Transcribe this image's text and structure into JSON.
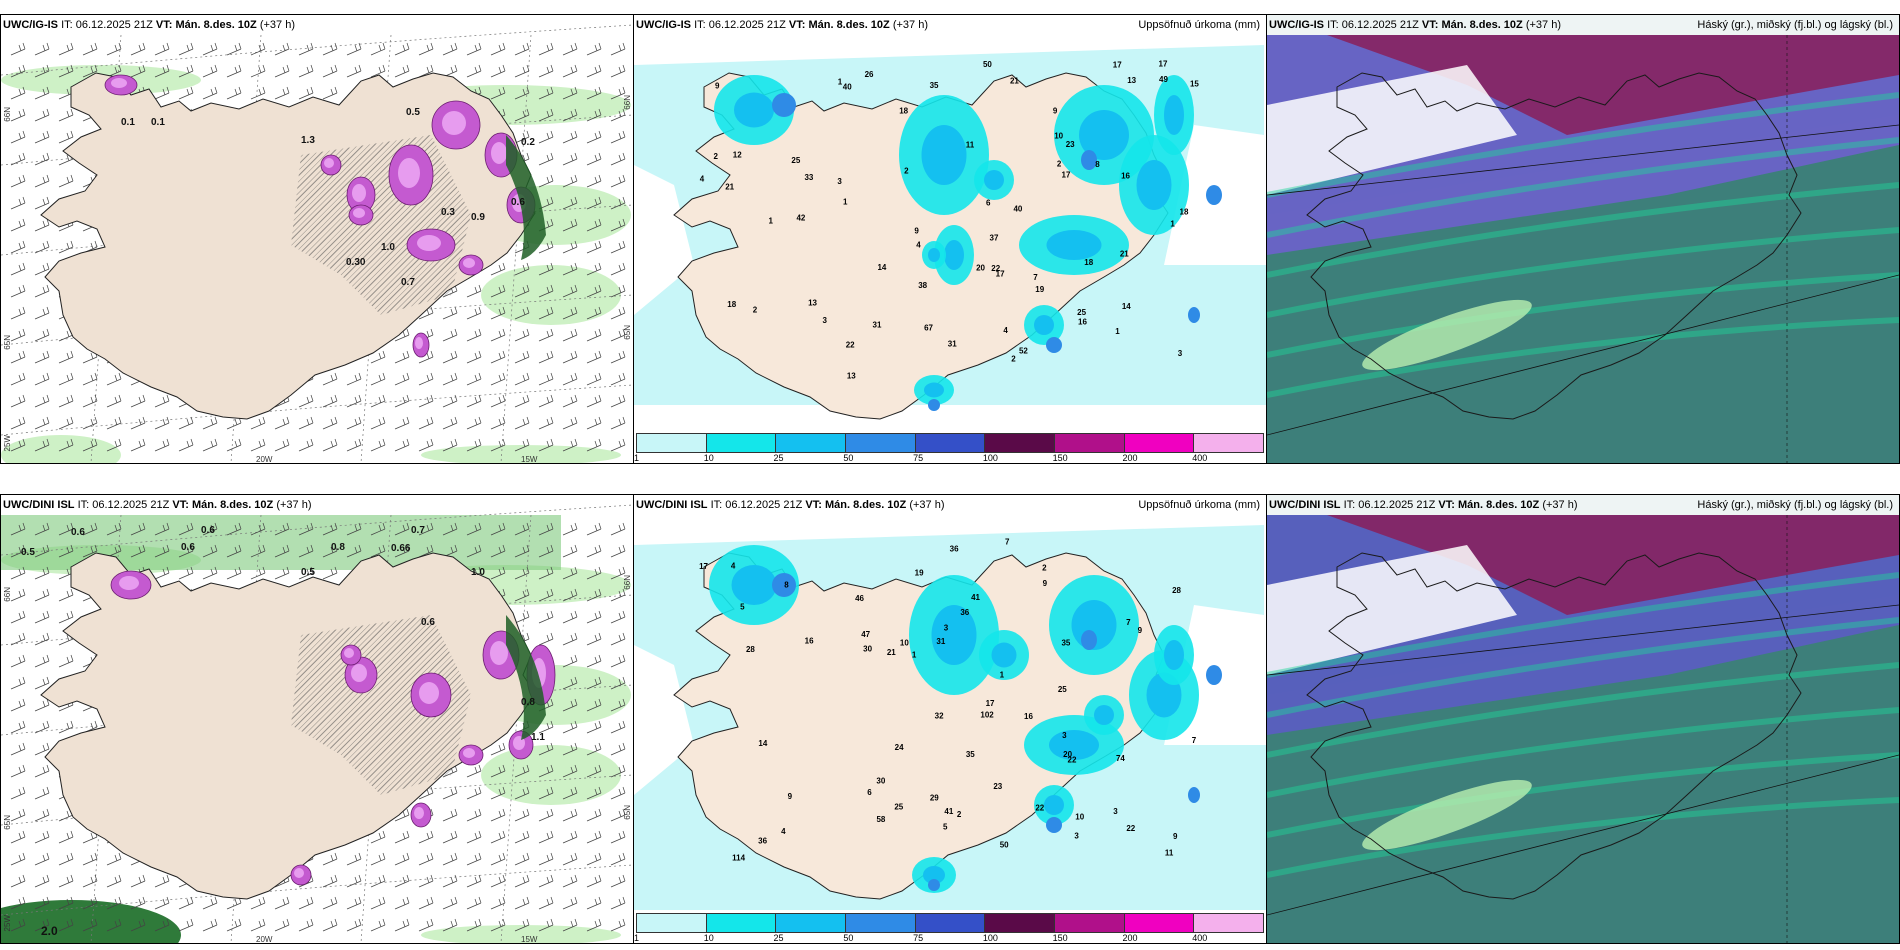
{
  "panels": [
    {
      "model": "UWC/IG-IS",
      "it_label": "IT:",
      "it_value": "06.12.2025 21Z",
      "vt_label": "VT:",
      "vt_value": "Mán. 8.des. 10Z",
      "lead": "(+37 h)",
      "right_title": "",
      "kind": "wind"
    },
    {
      "model": "UWC/IG-IS",
      "it_label": "IT:",
      "it_value": "06.12.2025 21Z",
      "vt_label": "VT:",
      "vt_value": "Mán. 8.des. 10Z",
      "lead": "(+37 h)",
      "right_title": "Uppsöfnuð úrkoma (mm)",
      "kind": "precip"
    },
    {
      "model": "UWC/IG-IS",
      "it_label": "IT:",
      "it_value": "06.12.2025 21Z",
      "vt_label": "VT:",
      "vt_value": "Mán. 8.des. 10Z",
      "lead": "(+37 h)",
      "right_title": "Háský (gr.), miðský (fj.bl.) og lágský (bl.)",
      "kind": "cloud"
    },
    {
      "model": "UWC/DINI ISL",
      "it_label": "IT:",
      "it_value": "06.12.2025 21Z",
      "vt_label": "VT:",
      "vt_value": "Mán. 8.des. 10Z",
      "lead": "(+37 h)",
      "right_title": "",
      "kind": "wind"
    },
    {
      "model": "UWC/DINI ISL",
      "it_label": "IT:",
      "it_value": "06.12.2025 21Z",
      "vt_label": "VT:",
      "vt_value": "Mán. 8.des. 10Z",
      "lead": "(+37 h)",
      "right_title": "Uppsöfnuð úrkoma (mm)",
      "kind": "precip"
    },
    {
      "model": "UWC/DINI ISL",
      "it_label": "IT:",
      "it_value": "06.12.2025 21Z",
      "vt_label": "VT:",
      "vt_value": "Mán. 8.des. 10Z",
      "lead": "(+37 h)",
      "right_title": "Háský (gr.), miðský (fj.bl.) og lágský (bl.)",
      "kind": "cloud"
    }
  ],
  "axis_labels": {
    "lon_20w": "20W",
    "lon_15w": "15W",
    "lat_66n": "66N",
    "lat_64n": "64N",
    "lat_65n": "65N",
    "lon_25w": "25W"
  },
  "colorbar": {
    "ticks": [
      "1",
      "10",
      "25",
      "50",
      "75",
      "100",
      "150",
      "200",
      "400"
    ],
    "colors": [
      "#c8f6f8",
      "#14e6ea",
      "#14c0f0",
      "#2f8be6",
      "#3450c8",
      "#5a0a48",
      "#b0108a",
      "#f000c0",
      "#f4b0ec"
    ]
  },
  "precip_labels_top": [
    "52",
    "40",
    "13",
    "25",
    "8",
    "4",
    "1",
    "1",
    "4",
    "3",
    "2",
    "2",
    "9",
    "22",
    "17",
    "17",
    "21",
    "13",
    "18",
    "16",
    "25",
    "17",
    "22",
    "16",
    "40",
    "23",
    "42",
    "33",
    "31",
    "18",
    "19",
    "17",
    "9",
    "31",
    "26",
    "67",
    "50",
    "12",
    "18",
    "7",
    "35",
    "6",
    "15",
    "14",
    "21",
    "21",
    "20",
    "38",
    "37",
    "49",
    "14",
    "11",
    "3",
    "10",
    "9",
    "3",
    "1",
    "2",
    "13",
    "18",
    "4",
    "2",
    "2",
    "1",
    "1"
  ],
  "precip_labels_bottom": [
    "36",
    "74",
    "17",
    "35",
    "19",
    "7",
    "3",
    "2",
    "10",
    "6",
    "11",
    "30",
    "25",
    "36",
    "22",
    "47",
    "20",
    "14",
    "32",
    "28",
    "17",
    "4",
    "5",
    "16",
    "22",
    "9",
    "10",
    "36",
    "9",
    "23",
    "22",
    "24",
    "41",
    "114",
    "102",
    "50",
    "41",
    "35",
    "28",
    "29",
    "16",
    "30",
    "46",
    "58",
    "25",
    "21",
    "3",
    "2",
    "7",
    "9",
    "5",
    "31",
    "4",
    "3",
    "9",
    "8",
    "7",
    "1",
    "1",
    "3"
  ],
  "wind_labels_top": [
    "0.1",
    "0.3",
    "0.1",
    "0.5",
    "1.3",
    "0.2",
    "1.0",
    "0.7",
    "0.30",
    "0.6",
    "0.9"
  ],
  "wind_labels_bottom": [
    "0.6",
    "0.5",
    "0.6",
    "0.6",
    "0.8",
    "0.66",
    "0.7",
    "0.5",
    "1.0",
    "0.6",
    "1.1",
    "2.0",
    "0.8"
  ]
}
